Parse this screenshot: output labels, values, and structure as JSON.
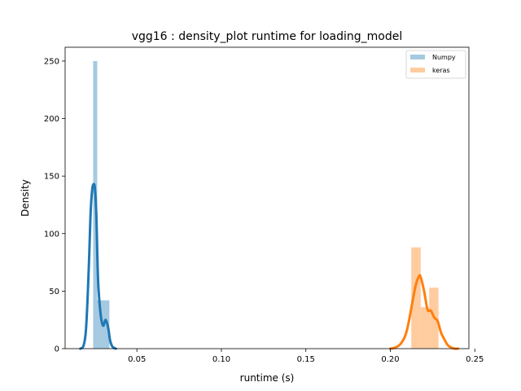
{
  "chart_data": {
    "type": "histogram-density",
    "title": "vgg16 : density_plot runtime  for loading_model",
    "xlabel": "runtime (s)",
    "ylabel": "Density",
    "xlim": [
      0.0075,
      0.2465
    ],
    "ylim": [
      0,
      262
    ],
    "x_ticks": [
      0.05,
      0.1,
      0.15,
      0.2,
      0.25
    ],
    "x_tick_labels": [
      "0.05",
      "0.10",
      "0.15",
      "0.20",
      "0.25"
    ],
    "y_ticks": [
      0,
      50,
      100,
      150,
      200,
      250
    ],
    "y_tick_labels": [
      "0",
      "50",
      "100",
      "150",
      "200",
      "250"
    ],
    "grid": false,
    "legend_position": "top-right",
    "series": [
      {
        "name": "Numpy",
        "color": "#1f77b4",
        "histogram": {
          "bins": [
            {
              "x0": 0.0241,
              "x1": 0.0265,
              "density": 250
            },
            {
              "x0": 0.0265,
              "x1": 0.0289,
              "density": 42
            },
            {
              "x0": 0.0289,
              "x1": 0.0313,
              "density": 42
            },
            {
              "x0": 0.0313,
              "x1": 0.0337,
              "density": 42
            }
          ]
        },
        "kde": {
          "x": [
            0.0165,
            0.0185,
            0.02,
            0.0215,
            0.0225,
            0.0235,
            0.0245,
            0.0252,
            0.026,
            0.027,
            0.0285,
            0.03,
            0.0315,
            0.033,
            0.034,
            0.035,
            0.036,
            0.0375
          ],
          "y": [
            0,
            3,
            20,
            70,
            115,
            138,
            143,
            138,
            115,
            60,
            30,
            20,
            25,
            18,
            8,
            3,
            1,
            0
          ]
        }
      },
      {
        "name": "keras",
        "color": "#ff7f0e",
        "histogram": {
          "bins": [
            {
              "x0": 0.2124,
              "x1": 0.218,
              "density": 88
            },
            {
              "x0": 0.218,
              "x1": 0.223,
              "density": 36
            },
            {
              "x0": 0.223,
              "x1": 0.2285,
              "density": 53
            }
          ]
        },
        "kde": {
          "x": [
            0.2,
            0.203,
            0.206,
            0.209,
            0.211,
            0.213,
            0.215,
            0.217,
            0.218,
            0.22,
            0.222,
            0.224,
            0.226,
            0.228,
            0.23,
            0.232,
            0.234,
            0.236,
            0.238,
            0.24
          ],
          "y": [
            0,
            1,
            4,
            12,
            24,
            40,
            55,
            63,
            62,
            50,
            34,
            33,
            27,
            24,
            14,
            8,
            3,
            1,
            0,
            0
          ]
        }
      }
    ]
  }
}
